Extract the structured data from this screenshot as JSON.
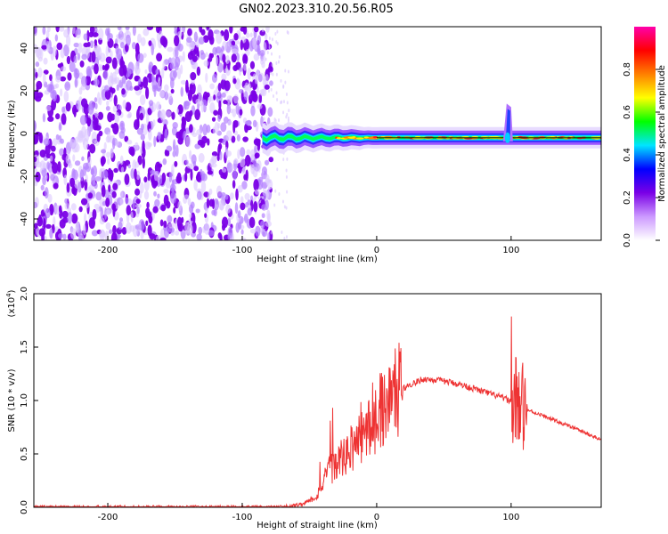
{
  "title": "GN02.2023.310.20.56.R05",
  "chart_data": [
    {
      "type": "heatmap",
      "xlabel": "Height of straight line (km)",
      "ylabel": "Frequency (Hz)",
      "xlim": [
        -255,
        167
      ],
      "ylim": [
        -50,
        50
      ],
      "xticks": [
        -200,
        -100,
        0,
        100
      ],
      "yticks": [
        -40,
        -20,
        0,
        20,
        40
      ],
      "grid": false,
      "colorbar": {
        "label": "Normalized spectral amplitude",
        "range": [
          0,
          1
        ],
        "ticks": [
          "0.0",
          "0.2",
          "0.4",
          "0.6",
          "0.8"
        ],
        "colors": [
          "#ffffff",
          "#cc99ff",
          "#7a00e6",
          "#0000ff",
          "#00e5ff",
          "#00ff00",
          "#ffff00",
          "#ff8000",
          "#ff0000",
          "#ff00aa"
        ]
      },
      "features": {
        "noise_region_x": [
          -255,
          -85
        ],
        "signal_center_y": -2,
        "signal_start_x": -85,
        "spike_x": 98,
        "spike_top_y": 14
      }
    },
    {
      "type": "line",
      "xlabel": "Height of straight line (km)",
      "ylabel": "SNR (10 * v/v)",
      "yscale_label": "(x10",
      "yscale_exp": "4",
      "yscale_close": ")",
      "xlim": [
        -255,
        167
      ],
      "ylim": [
        0,
        2.0
      ],
      "xticks": [
        -200,
        -100,
        0,
        100
      ],
      "yticks": [
        "0.0",
        "0.5",
        "1.0",
        "1.5",
        "2.0"
      ],
      "series": [
        {
          "color": "#ee3333",
          "x": [
            -255,
            -200,
            -150,
            -100,
            -70,
            -55,
            -45,
            -35,
            -25,
            -15,
            -5,
            5,
            15,
            25,
            35,
            45,
            55,
            65,
            75,
            85,
            95,
            100,
            105,
            108,
            110,
            115,
            125,
            135,
            145,
            155,
            167
          ],
          "y": [
            0.0,
            0.0,
            0.0,
            0.0,
            0.0,
            0.03,
            0.1,
            0.35,
            0.45,
            0.6,
            0.75,
            0.95,
            1.08,
            1.15,
            1.2,
            1.19,
            1.17,
            1.14,
            1.1,
            1.06,
            1.02,
            0.99,
            0.97,
            0.94,
            0.92,
            0.9,
            0.85,
            0.8,
            0.75,
            0.7,
            0.63
          ]
        }
      ]
    }
  ]
}
